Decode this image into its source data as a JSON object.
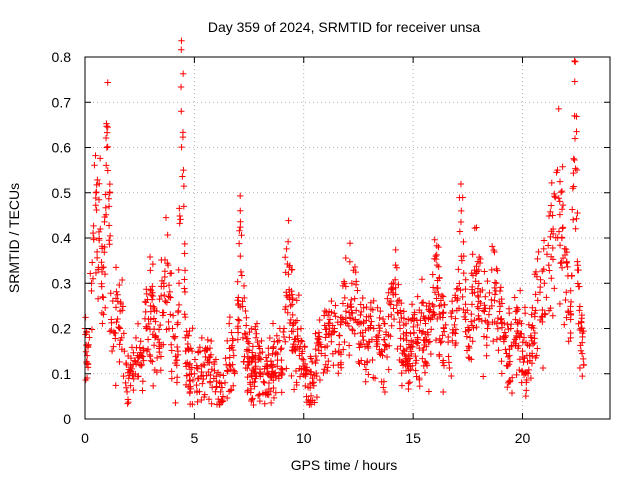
{
  "chart_data": {
    "type": "scatter",
    "title": "Day 359 of 2024, SRMTID for receiver unsa",
    "xlabel": "GPS time / hours",
    "ylabel": "SRMTID / TECUs",
    "xlim": [
      0,
      24
    ],
    "ylim": [
      0,
      0.8
    ],
    "xticks": [
      0,
      5,
      10,
      15,
      20
    ],
    "xtick_labels": [
      "0",
      "5",
      "10",
      "15",
      "20"
    ],
    "yticks": [
      0,
      0.1,
      0.2,
      0.3,
      0.4,
      0.5,
      0.6,
      0.7,
      0.8
    ],
    "ytick_labels": [
      "0",
      "0.1",
      "0.2",
      "0.3",
      "0.4",
      "0.5",
      "0.6",
      "0.7",
      "0.8"
    ],
    "grid": true,
    "marker": "+",
    "color": "#ff0000",
    "data_range_hours": [
      0,
      22.8
    ],
    "series": [
      {
        "name": "SRMTID",
        "x": [
          0.0,
          0.1,
          0.2,
          0.3,
          0.4,
          0.5,
          0.6,
          0.7,
          0.8,
          0.9,
          1.0,
          1.1,
          1.2,
          1.3,
          1.4,
          1.5,
          1.6,
          1.7,
          1.8,
          1.9,
          2.0,
          2.2,
          2.4,
          2.6,
          2.8,
          3.0,
          3.2,
          3.4,
          3.6,
          3.8,
          4.0,
          4.2,
          4.3,
          4.4,
          4.5,
          4.6,
          4.8,
          5.0,
          5.2,
          5.4,
          5.6,
          5.8,
          6.0,
          6.2,
          6.4,
          6.6,
          6.8,
          7.0,
          7.1,
          7.2,
          7.4,
          7.6,
          7.8,
          8.0,
          8.2,
          8.4,
          8.6,
          8.8,
          9.0,
          9.1,
          9.2,
          9.3,
          9.4,
          9.6,
          9.8,
          10.0,
          10.2,
          10.4,
          10.6,
          10.8,
          11.0,
          11.2,
          11.4,
          11.6,
          11.8,
          12.0,
          12.2,
          12.4,
          12.6,
          12.8,
          13.0,
          13.2,
          13.4,
          13.6,
          13.8,
          14.0,
          14.2,
          14.4,
          14.6,
          14.8,
          15.0,
          15.2,
          15.4,
          15.6,
          15.8,
          16.0,
          16.2,
          16.4,
          16.6,
          16.8,
          17.0,
          17.2,
          17.4,
          17.6,
          17.8,
          18.0,
          18.2,
          18.4,
          18.6,
          18.8,
          19.0,
          19.2,
          19.4,
          19.6,
          19.8,
          20.0,
          20.2,
          20.4,
          20.6,
          20.8,
          21.0,
          21.2,
          21.4,
          21.5,
          21.6,
          21.8,
          22.0,
          22.2,
          22.4,
          22.6,
          22.8
        ],
        "y": [
          0.2,
          0.14,
          0.18,
          0.3,
          0.4,
          0.5,
          0.33,
          0.42,
          0.27,
          0.38,
          0.6,
          0.47,
          0.22,
          0.16,
          0.19,
          0.26,
          0.2,
          0.24,
          0.15,
          0.12,
          0.09,
          0.1,
          0.14,
          0.12,
          0.2,
          0.25,
          0.18,
          0.16,
          0.3,
          0.34,
          0.2,
          0.13,
          0.3,
          0.68,
          0.55,
          0.15,
          0.11,
          0.1,
          0.09,
          0.12,
          0.13,
          0.11,
          0.07,
          0.06,
          0.08,
          0.12,
          0.14,
          0.22,
          0.36,
          0.26,
          0.15,
          0.1,
          0.14,
          0.11,
          0.08,
          0.1,
          0.12,
          0.13,
          0.1,
          0.2,
          0.28,
          0.32,
          0.25,
          0.16,
          0.14,
          0.1,
          0.07,
          0.09,
          0.13,
          0.16,
          0.18,
          0.22,
          0.2,
          0.15,
          0.22,
          0.25,
          0.3,
          0.24,
          0.19,
          0.16,
          0.17,
          0.2,
          0.18,
          0.14,
          0.16,
          0.23,
          0.29,
          0.2,
          0.15,
          0.14,
          0.17,
          0.18,
          0.19,
          0.16,
          0.22,
          0.28,
          0.25,
          0.2,
          0.17,
          0.19,
          0.24,
          0.46,
          0.22,
          0.18,
          0.28,
          0.26,
          0.24,
          0.2,
          0.25,
          0.3,
          0.22,
          0.18,
          0.14,
          0.17,
          0.19,
          0.15,
          0.14,
          0.18,
          0.24,
          0.28,
          0.3,
          0.34,
          0.42,
          0.49,
          0.55,
          0.4,
          0.28,
          0.22,
          0.62,
          0.24,
          0.12
        ]
      }
    ]
  }
}
